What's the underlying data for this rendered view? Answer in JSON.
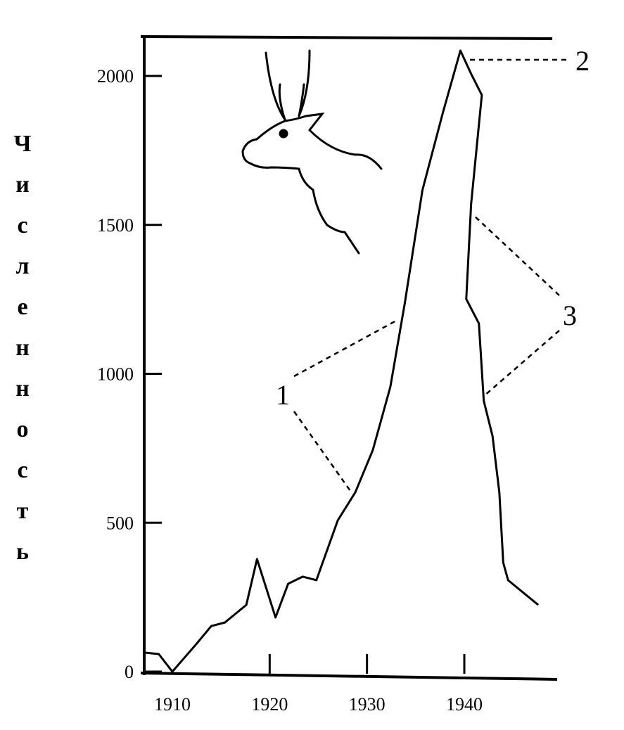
{
  "chart_data": {
    "type": "line",
    "y_label": "Численность",
    "x": [
      1907.1,
      1908.6,
      1910,
      1912.5,
      1914,
      1915.4,
      1917.6,
      1918.7,
      1920.6,
      1921.9,
      1923.4,
      1924.8,
      1927,
      1928.8,
      1930.6,
      1932.4,
      1933.9,
      1935.7,
      1937.8,
      1939.6,
      1940.7,
      1941.8,
      1940.7,
      1940.2,
      1941.5,
      1942,
      1942.9,
      1943.6,
      1944,
      1944.5,
      1947.6
    ],
    "series": [
      {
        "color": "#000000",
        "values": [
          64,
          59,
          0,
          94,
          153,
          165,
          224,
          378,
          182,
          295,
          319,
          307,
          508,
          602,
          744,
          956,
          1240,
          1617,
          1877,
          2085,
          2007,
          1936,
          1570,
          1251,
          1169,
          909,
          791,
          602,
          366,
          307,
          224
        ]
      }
    ],
    "xlim": [
      1907,
      1949
    ],
    "xticks": [
      1910,
      1920,
      1930,
      1940
    ],
    "ylim": [
      0,
      2130
    ],
    "yticks": [
      0,
      500,
      1000,
      1500,
      2000
    ],
    "annotations": [
      "1",
      "2",
      "3"
    ]
  }
}
